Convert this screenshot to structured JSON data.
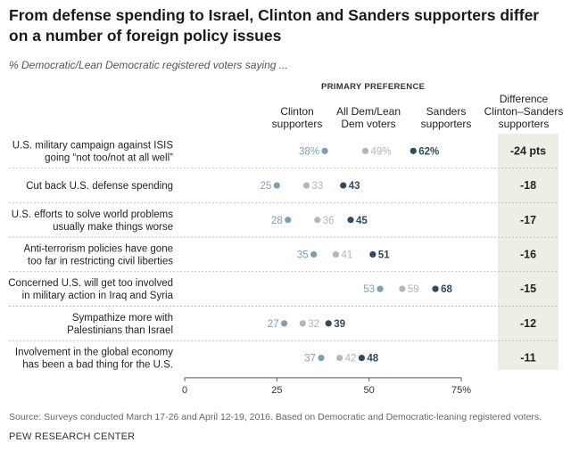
{
  "header": {
    "title": "From defense spending to Israel, Clinton and Sanders supporters differ on a number of foreign policy issues",
    "subtitle": "% Democratic/Lean Democratic registered voters saying ...",
    "eyebrow": "PRIMARY PREFERENCE",
    "col_clinton": "Clinton supporters",
    "col_all": "All Dem/Lean Dem voters",
    "col_sanders": "Sanders supporters",
    "col_diff": "Difference Clinton–Sanders supporters"
  },
  "colors": {
    "clinton": "#7d9fb6",
    "all": "#b6b6b6",
    "sanders": "#2e4b63",
    "grid": "#bdbdbd",
    "band": "#eeeee7"
  },
  "chart_data": {
    "type": "scatter",
    "title": "From defense spending to Israel, Clinton and Sanders supporters differ on a number of foreign policy issues",
    "xlim": [
      0,
      75
    ],
    "xticks": [
      "0",
      "25",
      "50",
      "75%"
    ],
    "tick_values": [
      0,
      25,
      50,
      75
    ],
    "series_names": [
      "Clinton supporters",
      "All Dem/Lean Dem voters",
      "Sanders supporters"
    ],
    "rows": [
      {
        "label": [
          "U.S. military campaign against ISIS",
          "going “not too/not at all well”"
        ],
        "clinton": 38,
        "all": 49,
        "sanders": 62,
        "clinton_label": "38%",
        "all_label": "49%",
        "sanders_label": "62%",
        "diff": "-24 pts"
      },
      {
        "label": [
          "Cut back U.S. defense spending"
        ],
        "clinton": 25,
        "all": 33,
        "sanders": 43,
        "clinton_label": "25",
        "all_label": "33",
        "sanders_label": "43",
        "diff": "-18"
      },
      {
        "label": [
          "U.S. efforts to solve world problems",
          "usually make things worse"
        ],
        "clinton": 28,
        "all": 36,
        "sanders": 45,
        "clinton_label": "28",
        "all_label": "36",
        "sanders_label": "45",
        "diff": "-17"
      },
      {
        "label": [
          "Anti-terrorism policies have gone",
          "too far in restricting civil liberties"
        ],
        "clinton": 35,
        "all": 41,
        "sanders": 51,
        "clinton_label": "35",
        "all_label": "41",
        "sanders_label": "51",
        "diff": "-16"
      },
      {
        "label": [
          "Concerned U.S. will get too involved",
          "in military action in Iraq and Syria"
        ],
        "clinton": 53,
        "all": 59,
        "sanders": 68,
        "clinton_label": "53",
        "all_label": "59",
        "sanders_label": "68",
        "diff": "-15"
      },
      {
        "label": [
          "Sympathize more with",
          "Palestinians than Israel"
        ],
        "clinton": 27,
        "all": 32,
        "sanders": 39,
        "clinton_label": "27",
        "all_label": "32",
        "sanders_label": "39",
        "diff": "-12"
      },
      {
        "label": [
          "Involvement in the global economy",
          "has been a bad thing for the U.S."
        ],
        "clinton": 37,
        "all": 42,
        "sanders": 48,
        "clinton_label": "37",
        "all_label": "42",
        "sanders_label": "48",
        "diff": "-11"
      }
    ]
  },
  "footer": {
    "source": "Source: Surveys conducted March 17-26 and April 12-19, 2016. Based on Democratic and Democratic-leaning registered voters.",
    "org": "PEW RESEARCH CENTER"
  }
}
